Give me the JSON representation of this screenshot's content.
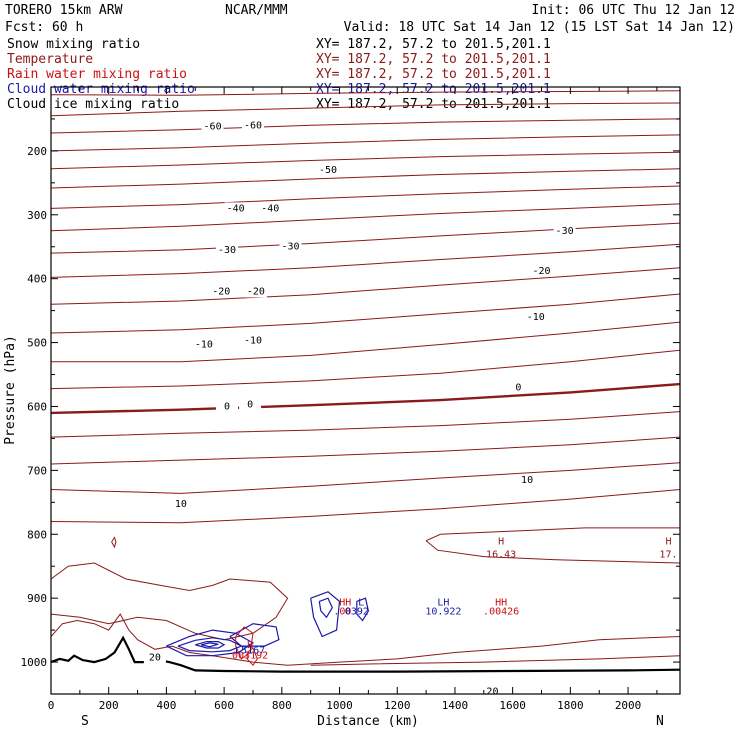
{
  "header": {
    "model": "TORERO  15km ARW",
    "center": "NCAR/MMM",
    "init": "Init: 06 UTC Thu 12 Jan 12",
    "fcst": "Fcst:   60 h",
    "valid": "Valid: 18 UTC Sat 14 Jan 12 (15 LST Sat 14 Jan 12)"
  },
  "colors": {
    "snow": "#000000",
    "temperature": "#8b1a1a",
    "rain": "#cc1111",
    "cloud_water": "#1a1aaa",
    "cloud_ice": "#000000"
  },
  "chart_data": {
    "type": "contour-cross-section",
    "xlabel": "Distance (km)",
    "ylabel": "Pressure (hPa)",
    "xlim": [
      0,
      2180
    ],
    "ylim": [
      1050,
      100
    ],
    "x_ticks": [
      "0",
      "200",
      "400",
      "600",
      "800",
      "1000",
      "1200",
      "1400",
      "1600",
      "1800",
      "2000"
    ],
    "x_tick_values": [
      0,
      200,
      400,
      600,
      800,
      1000,
      1200,
      1400,
      1600,
      1800,
      2000
    ],
    "y_ticks": [
      "200",
      "300",
      "400",
      "500",
      "600",
      "700",
      "800",
      "900",
      "1000"
    ],
    "y_tick_values": [
      200,
      300,
      400,
      500,
      600,
      700,
      800,
      900,
      1000
    ],
    "left_end_label": "S",
    "right_end_label": "N",
    "legend": [
      {
        "name": "Snow mixing ratio",
        "xy": "XY= 187.2, 57.2 to 201.5,201.1",
        "color": "snow"
      },
      {
        "name": "Temperature",
        "xy": "XY= 187.2, 57.2 to 201.5,201.1",
        "color": "temperature"
      },
      {
        "name": "Rain water mixing ratio",
        "xy": "XY= 187.2, 57.2 to 201.5,201.1",
        "color": "rain"
      },
      {
        "name": "Cloud water mixing ratio",
        "xy": "XY= 187.2, 57.2 to 201.5,201.1",
        "color": "cloud_water"
      },
      {
        "name": "Cloud ice mixing ratio",
        "xy": "XY= 187.2, 57.2 to 201.5,201.1",
        "color": "cloud_ice"
      }
    ],
    "temperature_contour_labels": [
      {
        "text": "-60",
        "x": 560,
        "p": 162
      },
      {
        "text": "-60",
        "x": 700,
        "p": 160
      },
      {
        "text": "-50",
        "x": 960,
        "p": 230
      },
      {
        "text": "-40",
        "x": 640,
        "p": 290
      },
      {
        "text": "-40",
        "x": 760,
        "p": 290
      },
      {
        "text": "-30",
        "x": 610,
        "p": 355
      },
      {
        "text": "-30",
        "x": 830,
        "p": 350
      },
      {
        "text": "-30",
        "x": 1780,
        "p": 325
      },
      {
        "text": "-20",
        "x": 590,
        "p": 420
      },
      {
        "text": "-20",
        "x": 710,
        "p": 420
      },
      {
        "text": "-20",
        "x": 1700,
        "p": 388
      },
      {
        "text": "-10",
        "x": 530,
        "p": 503
      },
      {
        "text": "-10",
        "x": 700,
        "p": 497
      },
      {
        "text": "-10",
        "x": 1680,
        "p": 460
      },
      {
        "text": "0",
        "x": 610,
        "p": 600
      },
      {
        "text": "0",
        "x": 690,
        "p": 597
      },
      {
        "text": "0",
        "x": 1620,
        "p": 570
      },
      {
        "text": "10",
        "x": 450,
        "p": 753
      },
      {
        "text": "10",
        "x": 1650,
        "p": 715
      },
      {
        "text": "20",
        "x": 360,
        "p": 993
      },
      {
        "text": "20",
        "x": 1530,
        "p": 1046
      }
    ],
    "annotations": [
      {
        "text": "H",
        "x": 1560,
        "p": 810,
        "color": "temperature"
      },
      {
        "text": "16.43",
        "x": 1560,
        "p": 830,
        "color": "temperature"
      },
      {
        "text": "H",
        "x": 2140,
        "p": 810,
        "color": "temperature"
      },
      {
        "text": "17.",
        "x": 2140,
        "p": 830,
        "color": "temperature"
      },
      {
        "text": "H",
        "x": 690,
        "p": 972,
        "color": "rain"
      },
      {
        "text": "003192",
        "x": 690,
        "p": 988,
        "color": "rain"
      },
      {
        "text": "L5167",
        "x": 690,
        "p": 980,
        "color": "cloud_water"
      },
      {
        "text": "HH",
        "x": 1020,
        "p": 905,
        "color": "rain"
      },
      {
        "text": "L",
        "x": 1075,
        "p": 905,
        "color": "cloud_water"
      },
      {
        "text": ".00",
        "x": 1010,
        "p": 919,
        "color": "rain"
      },
      {
        "text": "0392",
        "x": 1060,
        "p": 919,
        "color": "cloud_water"
      },
      {
        "text": "LH",
        "x": 1360,
        "p": 905,
        "color": "cloud_water"
      },
      {
        "text": "10.922",
        "x": 1360,
        "p": 919,
        "color": "cloud_water"
      },
      {
        "text": "HH",
        "x": 1560,
        "p": 905,
        "color": "rain"
      },
      {
        "text": ".00426",
        "x": 1560,
        "p": 919,
        "color": "rain"
      }
    ]
  }
}
